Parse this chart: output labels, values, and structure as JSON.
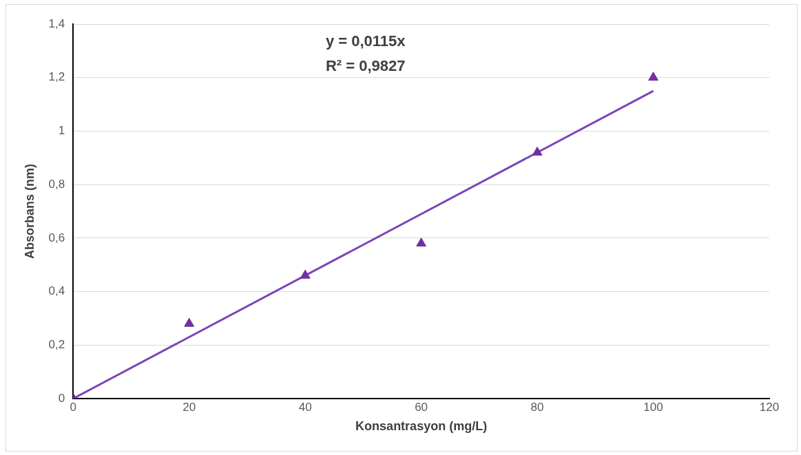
{
  "chart_data": {
    "type": "scatter",
    "xlabel": "Konsantrasyon (mg/L)",
    "ylabel": "Absorbans (nm)",
    "annotations": [
      "y = 0,0115x",
      "R² = 0,9827"
    ],
    "series": [
      {
        "type": "scatter",
        "color": "#7030a0",
        "x": [
          0,
          20,
          40,
          60,
          80,
          100
        ],
        "values": [
          0,
          0.28,
          0.46,
          0.58,
          0.92,
          1.2
        ],
        "marker": "triangle"
      },
      {
        "type": "line",
        "color": "#7b44b8",
        "x": [
          0,
          100
        ],
        "values": [
          0,
          1.15
        ],
        "marker": "none",
        "line_style": "solid"
      }
    ],
    "xlim": [
      0,
      120
    ],
    "xticks": [
      0,
      20,
      40,
      60,
      80,
      100,
      120
    ],
    "ylim": [
      0,
      1.4
    ],
    "yticks": [
      0,
      {
        "value": 0.2,
        "label": "0,2"
      },
      {
        "value": 0.4,
        "label": "0,4"
      },
      {
        "value": 0.6,
        "label": "0,6"
      },
      {
        "value": 0.8,
        "label": "0,8"
      },
      1,
      {
        "value": 1.2,
        "label": "1,2"
      },
      {
        "value": 1.4,
        "label": "1,4"
      }
    ],
    "grid": "y",
    "legend": false
  }
}
